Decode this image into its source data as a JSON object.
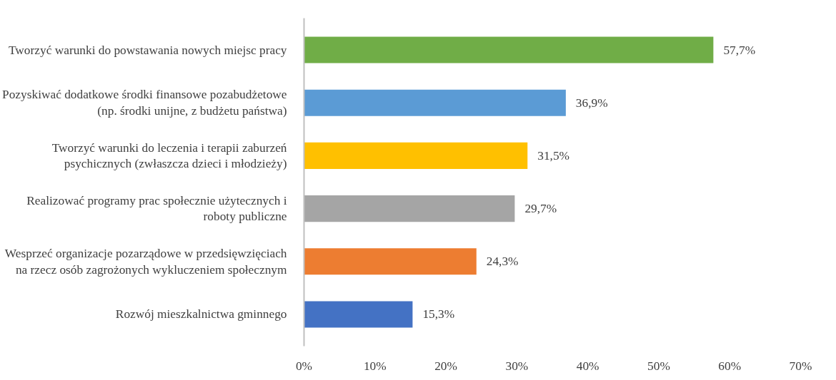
{
  "chart_data": {
    "type": "bar",
    "orientation": "horizontal",
    "categories": [
      "Tworzyć warunki do powstawania nowych miejsc pracy",
      "Pozyskiwać dodatkowe środki finansowe pozabudżetowe (np. środki unijne, z budżetu państwa)",
      "Tworzyć warunki do leczenia i terapii zaburzeń psychicznych (zwłaszcza dzieci i młodzieży)",
      "Realizować programy prac społecznie użytecznych i roboty publiczne",
      "Wesprzeć organizacje pozarządowe w przedsięwzięciach na rzecz osób zagrożonych wykluczeniem społecznym",
      "Rozwój mieszkalnictwa gminnego"
    ],
    "values": [
      57.7,
      36.9,
      31.5,
      29.7,
      24.3,
      15.3
    ],
    "value_labels": [
      "57,7%",
      "36,9%",
      "31,5%",
      "29,7%",
      "24,3%",
      "15,3%"
    ],
    "colors": [
      "#70ad47",
      "#5b9bd5",
      "#ffc000",
      "#a5a5a5",
      "#ed7d31",
      "#4472c4"
    ],
    "xlim": [
      0,
      70
    ],
    "xticks": [
      {
        "value": 0,
        "label": "0%"
      },
      {
        "value": 10,
        "label": "10%"
      },
      {
        "value": 20,
        "label": "20%"
      },
      {
        "value": 30,
        "label": "30%"
      },
      {
        "value": 40,
        "label": "40%"
      },
      {
        "value": 50,
        "label": "50%"
      },
      {
        "value": 60,
        "label": "60%"
      },
      {
        "value": 70,
        "label": "70%"
      }
    ],
    "grid": false
  }
}
